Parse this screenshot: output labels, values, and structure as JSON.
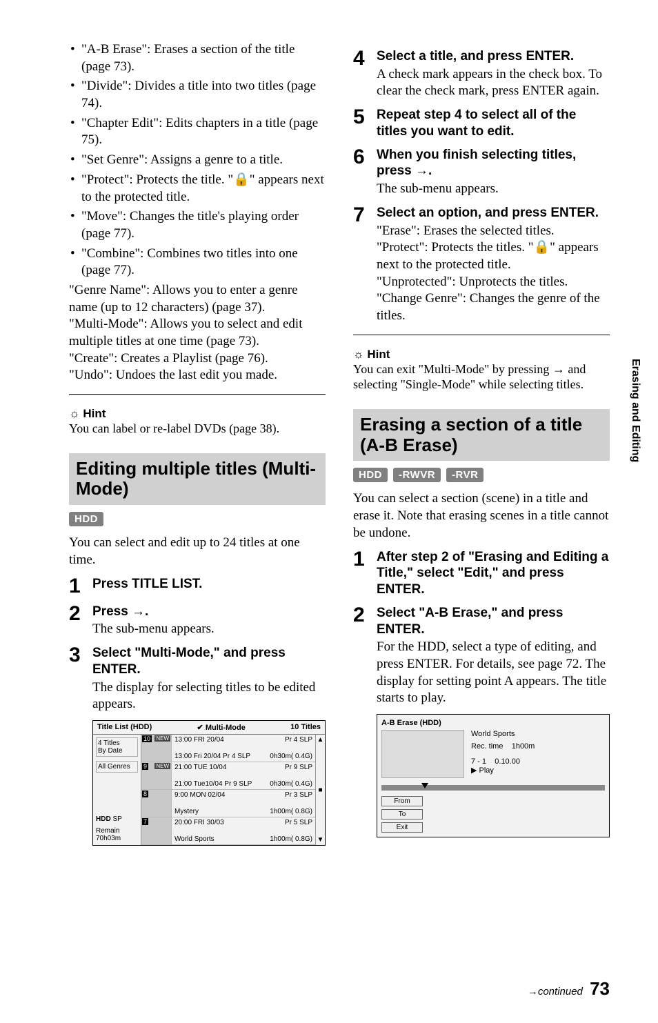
{
  "sideTab": "Erasing and Editing",
  "footer": {
    "continued": "continued",
    "page": "73"
  },
  "left": {
    "bullets": [
      "\"A-B Erase\": Erases a section of the title (page 73).",
      "\"Divide\": Divides a title into two titles (page 74).",
      "\"Chapter Edit\": Edits chapters in a title (page 75).",
      "\"Set Genre\": Assigns a genre to a title.",
      "\"Protect\": Protects the title. \"🔒\" appears next to the protected title.",
      "\"Move\": Changes the title's playing order (page 77).",
      "\"Combine\": Combines two titles into one (page 77)."
    ],
    "paras": [
      "\"Genre Name\": Allows you to enter a genre name (up to 12 characters) (page 37).",
      "\"Multi-Mode\": Allows you to select and edit multiple titles at one time (page 73).",
      "\"Create\": Creates a Playlist (page 76).",
      "\"Undo\": Undoes the last edit you made."
    ],
    "hintHead": "Hint",
    "hintBody": "You can label or re-label DVDs (page 38).",
    "sectionHead": "Editing multiple titles (Multi-Mode)",
    "badge": "HDD",
    "sectionIntro": "You can select and edit up to 24 titles at one time.",
    "steps": [
      {
        "n": "1",
        "title": "Press TITLE LIST.",
        "text": ""
      },
      {
        "n": "2",
        "title": "Press →.",
        "text": "The sub-menu appears."
      },
      {
        "n": "3",
        "title": "Select \"Multi-Mode,\" and press ENTER.",
        "text": "The display for selecting titles to be edited appears."
      }
    ],
    "mock": {
      "titlebarLeft": "Title List (HDD)",
      "titlebarMid": "✔ Multi-Mode",
      "titlebarRight": "10 Titles",
      "side": {
        "titles": "4 Titles",
        "byDate": "By Date",
        "allGenres": "All Genres",
        "hdd": "HDD",
        "sp": "SP",
        "remain": "Remain",
        "remainVal": "70h03m"
      },
      "rows": [
        {
          "num": "10",
          "new": "NEW",
          "l1": "13:00 FRI 20/04",
          "r1": "Pr 4 SLP",
          "l2": "13:00  Fri 20/04  Pr 4 SLP",
          "r2": "0h30m( 0.4G)"
        },
        {
          "num": "9",
          "new": "NEW",
          "l1": "21:00 TUE 10/04",
          "r1": "Pr 9 SLP",
          "l2": "21:00  Tue10/04 Pr 9 SLP",
          "r2": "0h30m( 0.4G)"
        },
        {
          "num": "8",
          "new": "",
          "l1": "9:00 MON 02/04",
          "r1": "Pr 3 SLP",
          "l2": "Mystery",
          "r2": "1h00m( 0.8G)"
        },
        {
          "num": "7",
          "new": "",
          "l1": "20:00 FRI 30/03",
          "r1": "Pr 5 SLP",
          "l2": "World Sports",
          "r2": "1h00m( 0.8G)"
        }
      ],
      "scrollTop": "▲",
      "scrollBox": "■",
      "scrollBot": "▼"
    }
  },
  "right": {
    "steps": [
      {
        "n": "4",
        "title": "Select a title, and press ENTER.",
        "text": "A check mark appears in the check box. To clear the check mark, press ENTER again."
      },
      {
        "n": "5",
        "title": "Repeat step 4 to select all of the titles you want to edit.",
        "text": ""
      },
      {
        "n": "6",
        "title": "When you finish selecting titles, press →.",
        "text": "The sub-menu appears."
      },
      {
        "n": "7",
        "title": "Select an option, and press ENTER.",
        "text": "\"Erase\": Erases the selected titles.\n\"Protect\": Protects the titles. \"🔒\" appears next to the protected title.\n\"Unprotected\": Unprotects the titles.\n\"Change Genre\": Changes the genre of the titles."
      }
    ],
    "hintHead": "Hint",
    "hintBody": "You can exit \"Multi-Mode\" by pressing → and selecting \"Single-Mode\" while selecting titles.",
    "sectionHead": "Erasing a section of a title (A-B Erase)",
    "badges": [
      "HDD",
      "-RWVR",
      "-RVR"
    ],
    "sectionIntro": "You can select a section (scene) in a title and erase it. Note that erasing scenes in a title cannot be undone.",
    "steps2": [
      {
        "n": "1",
        "title": "After step 2 of \"Erasing and Editing a Title,\" select \"Edit,\" and press ENTER.",
        "text": ""
      },
      {
        "n": "2",
        "title": "Select \"A-B Erase,\" and press ENTER.",
        "text": "For the HDD, select a type of editing, and press ENTER. For details, see page 72. The display for setting point A appears. The title starts to play."
      }
    ],
    "abmock": {
      "titlebar": "A-B Erase (HDD)",
      "name": "World Sports",
      "recTimeLbl": "Rec. time",
      "recTime": "1h00m",
      "counterLbl": "7 - 1",
      "counter": "0.10.00",
      "play": "▶ Play",
      "from": "From",
      "to": "To",
      "exit": "Exit"
    }
  }
}
